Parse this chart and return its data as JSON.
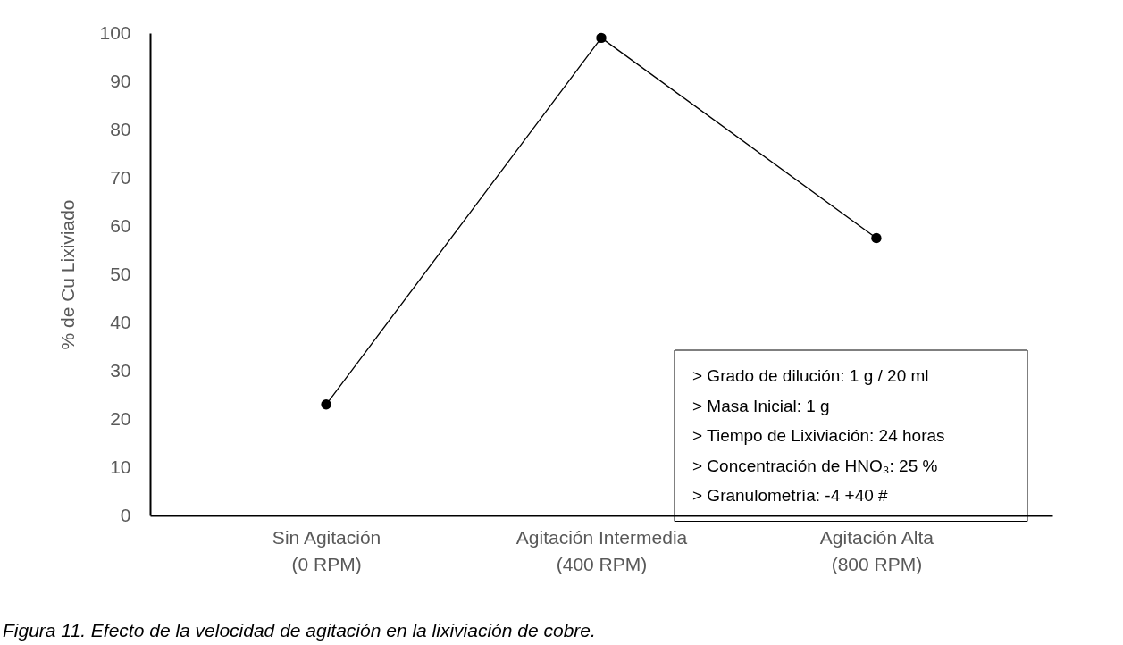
{
  "chart_data": {
    "type": "line",
    "ylabel": "% de Cu Lixiviado",
    "categories": [
      "Sin Agitación\n(0 RPM)",
      "Agitación Intermedia\n(400 RPM)",
      "Agitación Alta\n(800 RPM)"
    ],
    "series": [
      {
        "color": "#000000",
        "values": [
          23,
          99,
          57.5
        ]
      }
    ],
    "ylim": [
      0,
      100
    ],
    "yticks": [
      0,
      10,
      20,
      30,
      40,
      50,
      60,
      70,
      80,
      90,
      100
    ],
    "grid": false,
    "legend": false,
    "marker": "circle",
    "line_style": "solid",
    "annotations": [
      "> Grado de dilución: 1 g / 20 ml",
      "> Masa Inicial: 1 g",
      "> Tiempo de Lixiviación: 24 horas",
      "> Concentración de HNO₃: 25 %",
      "> Granulometría: -4 +40 #",
      "Figura 11. Efecto de la velocidad de agitación en la lixiviación de cobre."
    ]
  }
}
